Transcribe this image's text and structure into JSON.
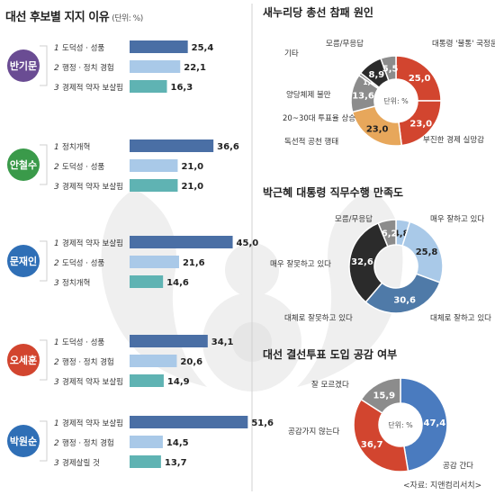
{
  "left_title": "대선 후보별 지지 이유",
  "left_unit": "(단위: %)",
  "source": "<자료: 지앤컴리서치>",
  "colors": {
    "bar_dark": "#4a6fa5",
    "bar_light": "#a9c9e8",
    "bar_teal": "#5fb3b3",
    "ban": "#6a4c93",
    "ahn": "#3a9a4a",
    "moon": "#2f6fb6",
    "oh": "#d2452f",
    "park": "#2f6fb6",
    "donut_red": "#d2452f",
    "donut_orange": "#e7a75b",
    "donut_gray": "#8c8c8c",
    "donut_dark": "#2b2b2b",
    "donut_lightblue": "#a9c9e8",
    "donut_blue": "#4a7bbf",
    "donut_steel": "#4f7aa8"
  },
  "chart_data": [
    {
      "type": "bar",
      "candidate": "반기문",
      "color_key": "ban",
      "categories": [
        "도덕성 · 성품",
        "행정 · 정치 경험",
        "경제적 약자 보살핌"
      ],
      "ranks": [
        "1",
        "2",
        "3"
      ],
      "values": [
        25.4,
        22.1,
        16.3
      ],
      "value_labels": [
        "25,4",
        "22,1",
        "16,3"
      ],
      "bar_colors": [
        "bar_dark",
        "bar_light",
        "bar_teal"
      ],
      "xlim": [
        0,
        55
      ]
    },
    {
      "type": "bar",
      "candidate": "안철수",
      "color_key": "ahn",
      "categories": [
        "정치개혁",
        "도덕성 · 성품",
        "경제적 약자 보살핌"
      ],
      "ranks": [
        "1",
        "2",
        "3"
      ],
      "values": [
        36.6,
        21.0,
        21.0
      ],
      "value_labels": [
        "36,6",
        "21,0",
        "21,0"
      ],
      "bar_colors": [
        "bar_dark",
        "bar_light",
        "bar_teal"
      ],
      "xlim": [
        0,
        55
      ]
    },
    {
      "type": "bar",
      "candidate": "문재인",
      "color_key": "moon",
      "categories": [
        "경제적 약자 보살핌",
        "도덕성 · 성품",
        "정치개혁"
      ],
      "ranks": [
        "1",
        "2",
        "3"
      ],
      "values": [
        45.0,
        21.6,
        14.6
      ],
      "value_labels": [
        "45,0",
        "21,6",
        "14,6"
      ],
      "bar_colors": [
        "bar_dark",
        "bar_light",
        "bar_teal"
      ],
      "xlim": [
        0,
        55
      ]
    },
    {
      "type": "bar",
      "candidate": "오세훈",
      "color_key": "oh",
      "categories": [
        "도덕성 · 성품",
        "행정 · 정치 경험",
        "경제적 약자 보살핌"
      ],
      "ranks": [
        "1",
        "2",
        "3"
      ],
      "values": [
        34.1,
        20.6,
        14.9
      ],
      "value_labels": [
        "34,1",
        "20,6",
        "14,9"
      ],
      "bar_colors": [
        "bar_dark",
        "bar_light",
        "bar_teal"
      ],
      "xlim": [
        0,
        55
      ]
    },
    {
      "type": "bar",
      "candidate": "박원순",
      "color_key": "park",
      "categories": [
        "경제적 약자 보살핌",
        "행정 · 정치 경험",
        "경제살릴 것"
      ],
      "ranks": [
        "1",
        "2",
        "3"
      ],
      "values": [
        51.6,
        14.5,
        13.7
      ],
      "value_labels": [
        "51,6",
        "14,5",
        "13,7"
      ],
      "bar_colors": [
        "bar_dark",
        "bar_light",
        "bar_teal"
      ],
      "xlim": [
        0,
        55
      ]
    },
    {
      "type": "pie",
      "title": "새누리당 총선 참패 원인",
      "unit_label": "단위: %",
      "slices": [
        {
          "name": "대통령 '불통' 국정운영",
          "value": 25.0,
          "label": "25,0",
          "color_key": "donut_red"
        },
        {
          "name": "부진한 경제 실망감",
          "value": 23.0,
          "label": "23,0",
          "color_key": "donut_red"
        },
        {
          "name": "독선적 공천 행태",
          "value": 23.0,
          "label": "23,0",
          "color_key": "donut_orange"
        },
        {
          "name": "20~30대 투표율 상승",
          "value": 0,
          "label": "",
          "color_key": "donut_orange"
        },
        {
          "name": "양당체제 불만",
          "value": 13.6,
          "label": "13,6",
          "color_key": "donut_gray"
        },
        {
          "name": "기타",
          "value": 1.0,
          "label": "1,0",
          "color_key": "donut_gray"
        },
        {
          "name": "모름/무응답",
          "value": 8.9,
          "label": "8,9",
          "color_key": "donut_dark"
        },
        {
          "name": "",
          "value": 5.5,
          "label": "5,5",
          "color_key": "donut_gray"
        }
      ]
    },
    {
      "type": "pie",
      "title": "박근혜 대통령 직무수행 만족도",
      "slices": [
        {
          "name": "매우 잘하고 있다",
          "value": 4.8,
          "label": "4,8",
          "color_key": "donut_lightblue"
        },
        {
          "name": "대체로 잘하고 있다",
          "value": 25.8,
          "label": "25,8",
          "color_key": "donut_lightblue"
        },
        {
          "name": "대체로 잘못하고 있다",
          "value": 30.6,
          "label": "30,6",
          "color_key": "donut_steel"
        },
        {
          "name": "매우 잘못하고 있다",
          "value": 32.6,
          "label": "32,6",
          "color_key": "donut_dark"
        },
        {
          "name": "모름/무응답",
          "value": 6.2,
          "label": "6,2",
          "color_key": "donut_gray"
        }
      ]
    },
    {
      "type": "pie",
      "title": "대선 결선투표 도입 공감 여부",
      "unit_label": "단위: %",
      "slices": [
        {
          "name": "공감 간다",
          "value": 47.4,
          "label": "47,4",
          "color_key": "donut_blue"
        },
        {
          "name": "공감가지 않는다",
          "value": 36.7,
          "label": "36,7",
          "color_key": "donut_red"
        },
        {
          "name": "잘 모르겠다",
          "value": 15.9,
          "label": "15,9",
          "color_key": "donut_gray"
        }
      ]
    }
  ]
}
